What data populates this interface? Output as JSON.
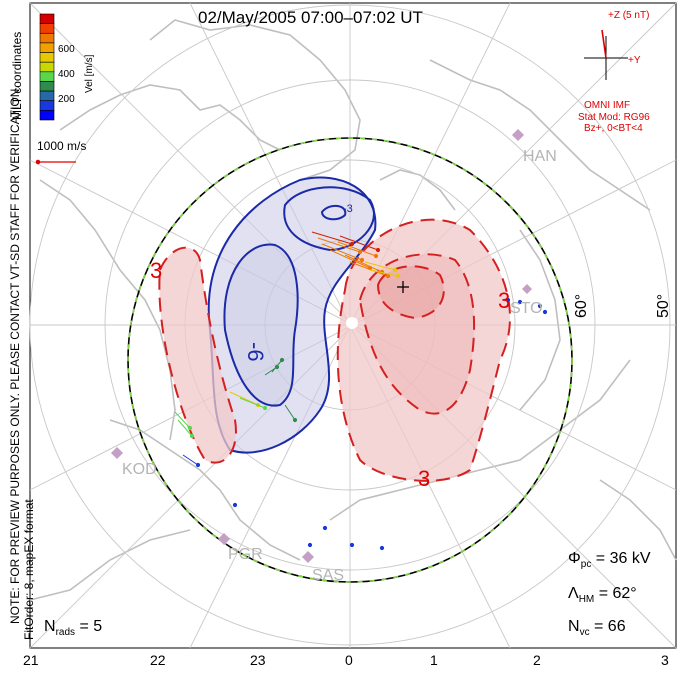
{
  "title": "02/May/2005 07:00–07:02 UT",
  "colorbar": {
    "label": "Vel [m/s]",
    "ticks": [
      "600",
      "400",
      "200"
    ],
    "colors": [
      "#d40000",
      "#f04000",
      "#f07800",
      "#f0a000",
      "#e8c800",
      "#c8d800",
      "#58d848",
      "#2f8c4f",
      "#2868a8",
      "#1838e0",
      "#0000ff"
    ]
  },
  "velocity_scale": "1000 m/s",
  "side_text": {
    "coords": "MLT coordinates",
    "note": "NOTE: FOR PREVIEW PURPOSES ONLY. PLEASE CONTACT VT-SD STAFF FOR VERIFICATION.",
    "fit": "FitOrder: 8, mapEX format"
  },
  "imf": {
    "bz_label": "+Z (5 nT)",
    "by_label": "+Y",
    "source": "OMNI IMF",
    "model": "Stat Mod: RG96",
    "condition": "Bz+, 0<BT<4"
  },
  "stations": [
    "HAN",
    "STO",
    "KOD",
    "PGR",
    "SAS"
  ],
  "latitude_labels": [
    "60°",
    "50°"
  ],
  "contour_labels": {
    "neg_inner": "-6",
    "neg_outer": "-3",
    "pos_left": "3",
    "pos_bottom": "3",
    "pos_right": "3"
  },
  "stats": {
    "phi_label": "Φ",
    "phi_sub": "pc",
    "phi_value": "= 36 kV",
    "lambda_label": "Λ",
    "lambda_sub": "HM",
    "lambda_value": "= 62°",
    "nvc_label": "N",
    "nvc_sub": "vc",
    "nvc_value": "= 66",
    "nrads_label": "N",
    "nrads_sub": "rads",
    "nrads_value": "= 5"
  },
  "mlt_ticks": [
    "21",
    "22",
    "23",
    "0",
    "1",
    "2",
    "3"
  ],
  "colors": {
    "negative": "#1a2aa8",
    "positive": "#d42020",
    "boundary_dash": "#7ed640",
    "coast": "#bfbfbf"
  }
}
